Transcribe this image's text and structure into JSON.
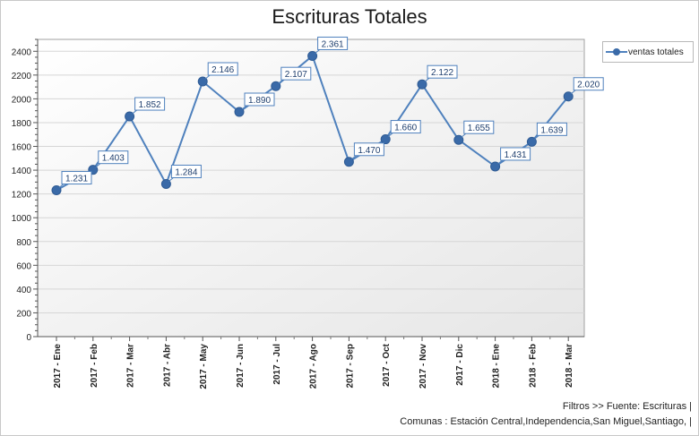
{
  "title": "Escrituras Totales",
  "legend_label": "ventas totales",
  "footer": {
    "filters": "Filtros >> Fuente: Escrituras |",
    "comunas": "Comunas : Estación Central,Independencia,San Miguel,Santiago, |"
  },
  "colors": {
    "series": "#4f81bd",
    "marker": "#3a6aa8",
    "plot_gradient_start": "#ffffff",
    "plot_gradient_end": "#e6e6e6",
    "grid": "#d6d6d6"
  },
  "chart_data": {
    "type": "line",
    "title": "Escrituras Totales",
    "categories": [
      "2017 - Ene",
      "2017 - Feb",
      "2017 - Mar",
      "2017 - Abr",
      "2017 - May",
      "2017 - Jun",
      "2017 - Jul",
      "2017 - Ago",
      "2017 - Sep",
      "2017 - Oct",
      "2017 - Nov",
      "2017 - Dic",
      "2018 - Ene",
      "2018 - Feb",
      "2018 - Mar"
    ],
    "series": [
      {
        "name": "ventas totales",
        "values": [
          1231,
          1403,
          1852,
          1284,
          2146,
          1890,
          2107,
          2361,
          1470,
          1660,
          2122,
          1655,
          1431,
          1639,
          2020
        ],
        "labels": [
          "1.231",
          "1.403",
          "1.852",
          "1.284",
          "2.146",
          "1.890",
          "2.107",
          "2.361",
          "1.470",
          "1.660",
          "2.122",
          "1.655",
          "1.431",
          "1.639",
          "2.020"
        ]
      }
    ],
    "ylim": [
      0,
      2500
    ],
    "yticks": [
      0,
      200,
      400,
      600,
      800,
      1000,
      1200,
      1400,
      1600,
      1800,
      2000,
      2200,
      2400
    ],
    "xlabel": "",
    "ylabel": "",
    "grid": true,
    "legend_position": "top-right"
  }
}
